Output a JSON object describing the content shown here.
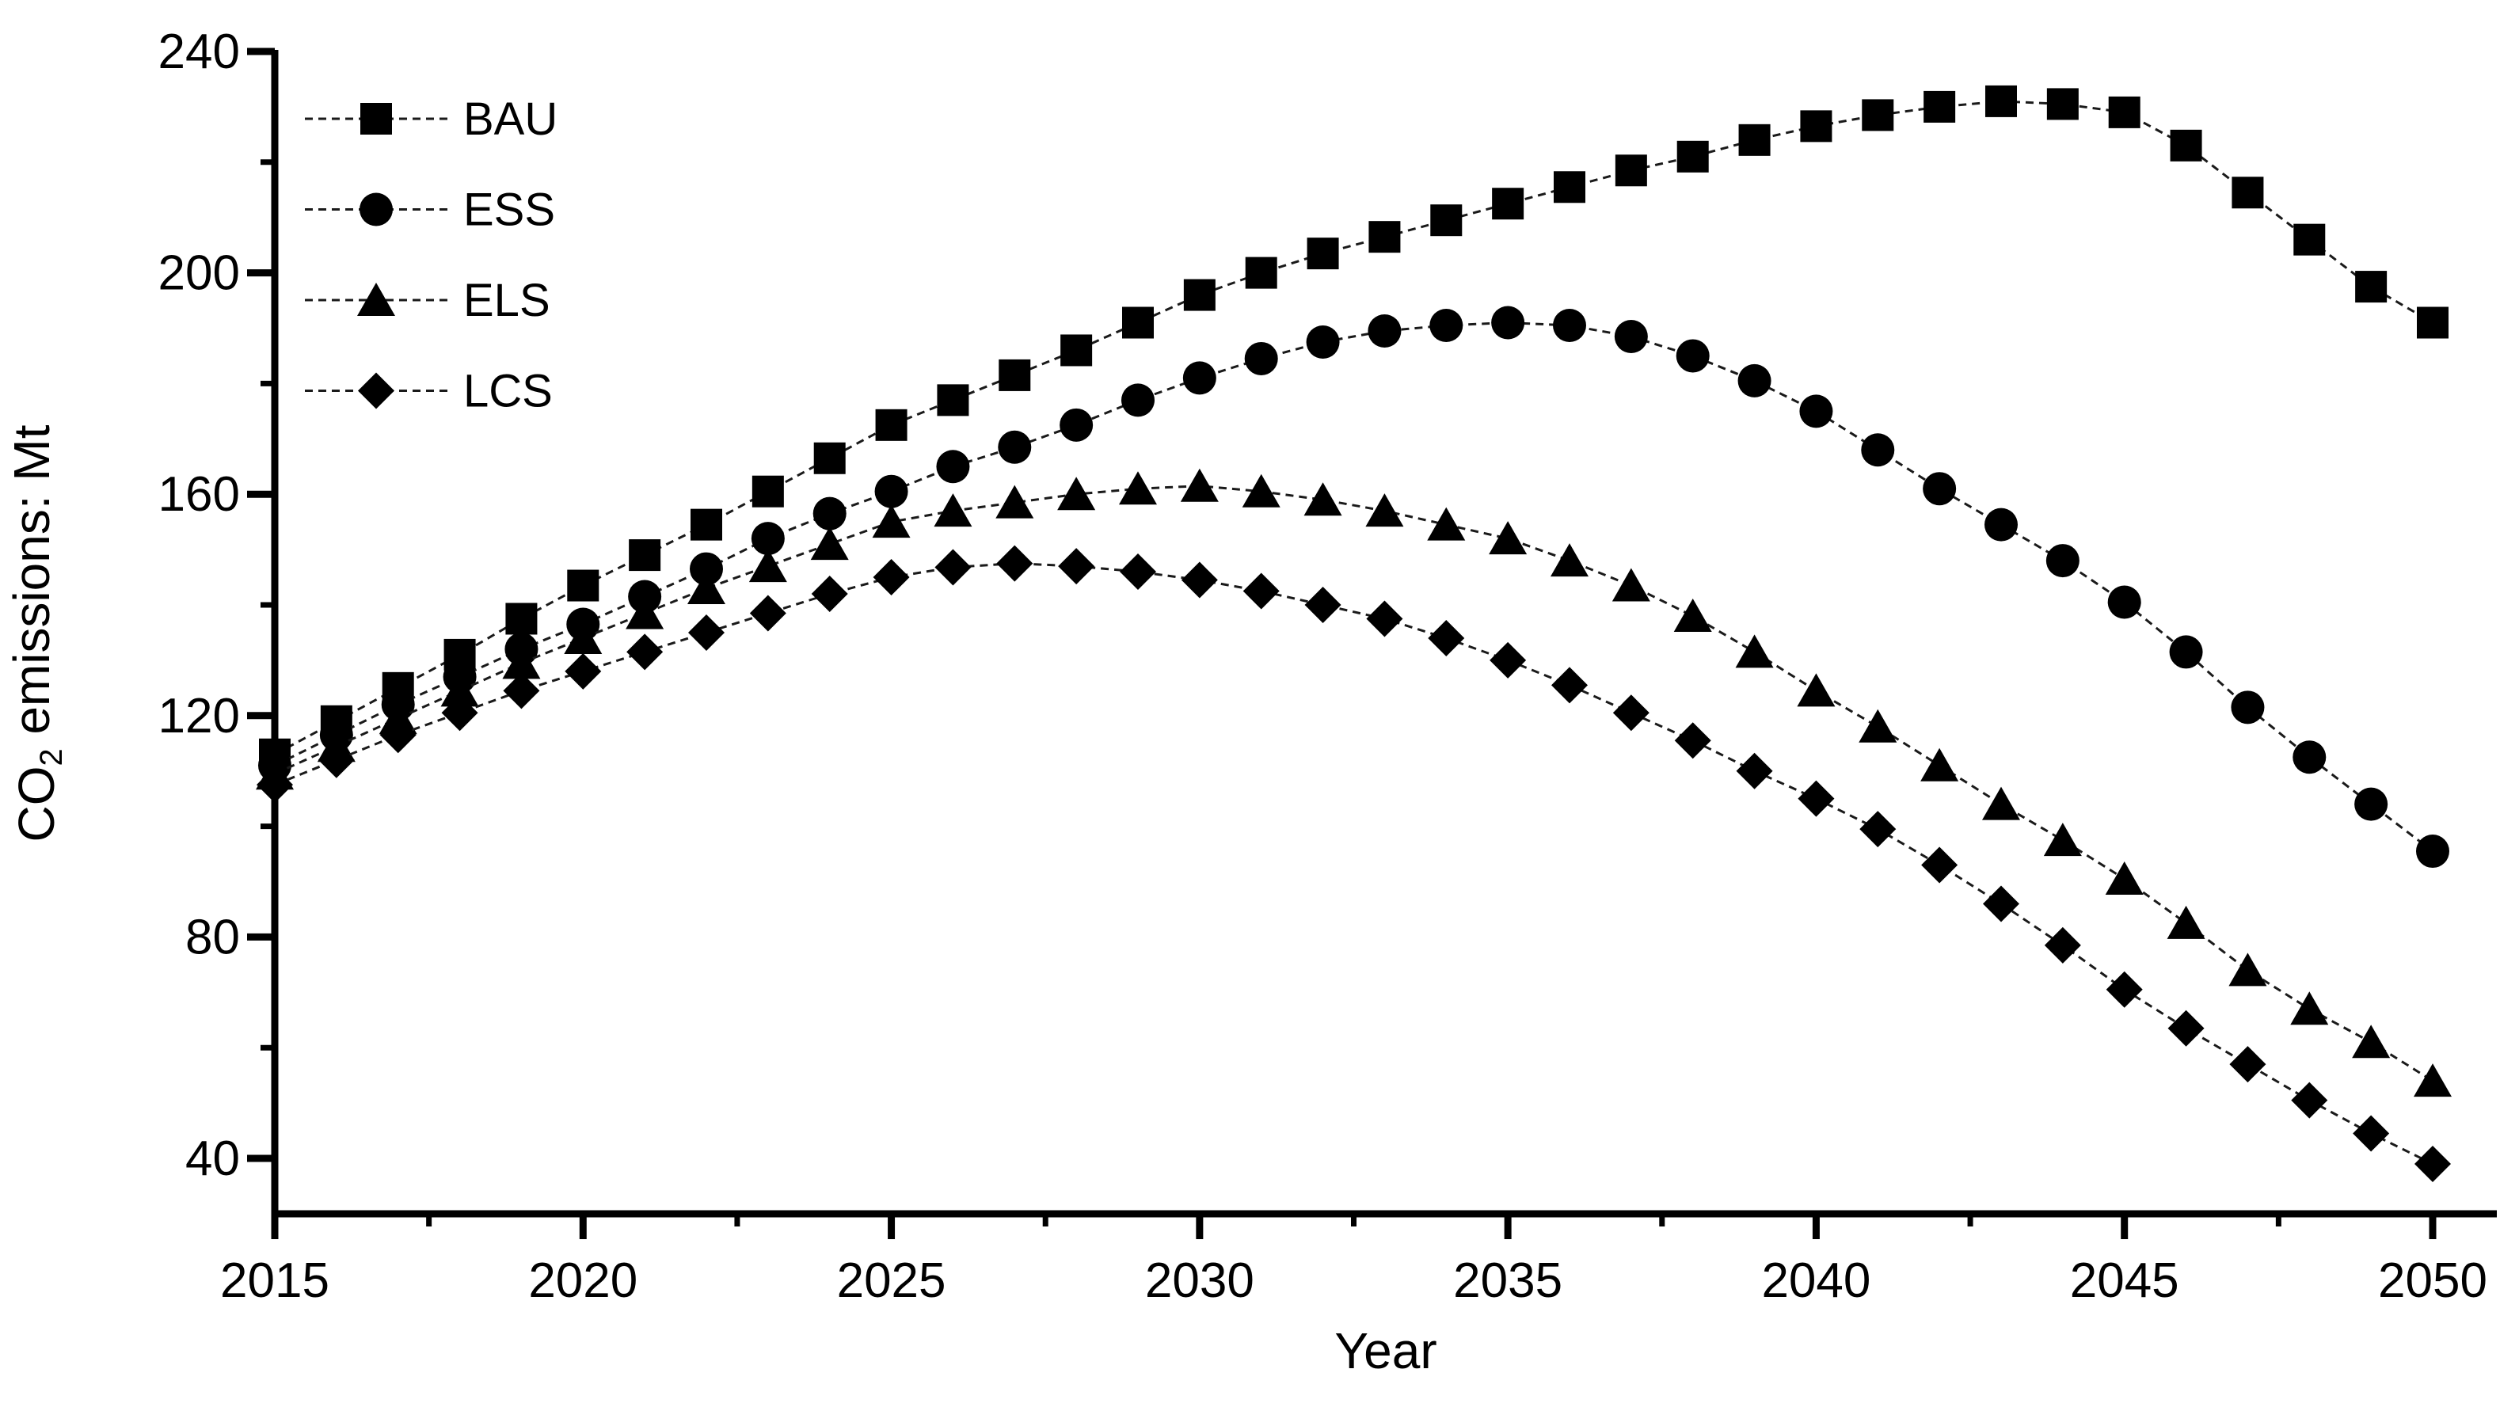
{
  "page": {
    "background": "#ffffff"
  },
  "chart_data": {
    "type": "line",
    "title": "",
    "xlabel": "Year",
    "ylabel": "CO2 emissions: Mt",
    "ylabel_parts": {
      "prefix": "CO",
      "subscript": "2",
      "suffix": " emissions: Mt"
    },
    "xlim": [
      2015,
      2051
    ],
    "ylim": [
      30,
      240
    ],
    "grid": false,
    "legend_position": "inside-top-left",
    "x_major_ticks": [
      2015,
      2020,
      2025,
      2030,
      2035,
      2040,
      2045,
      2050
    ],
    "x_minor_ticks": [
      2017.5,
      2022.5,
      2027.5,
      2032.5,
      2037.5,
      2042.5,
      2047.5
    ],
    "y_major_ticks": [
      240,
      200,
      160,
      120,
      80,
      40
    ],
    "y_minor_ticks": [
      220,
      180,
      140,
      100,
      60
    ],
    "x": [
      2015,
      2016,
      2017,
      2018,
      2019,
      2020,
      2021,
      2022,
      2023,
      2024,
      2025,
      2026,
      2027,
      2028,
      2029,
      2030,
      2031,
      2032,
      2033,
      2034,
      2035,
      2036,
      2037,
      2038,
      2039,
      2040,
      2041,
      2042,
      2043,
      2044,
      2045,
      2046,
      2047,
      2048,
      2049,
      2050
    ],
    "series": [
      {
        "name": "BAU",
        "marker": "square",
        "values": [
          113,
          119,
          125,
          131,
          137.5,
          143.5,
          149,
          154.5,
          160.5,
          166.5,
          172.5,
          177,
          181.5,
          186,
          191,
          196,
          200,
          203.5,
          206.5,
          209.5,
          212.5,
          215.5,
          218.5,
          221,
          224,
          226.5,
          228.5,
          230,
          231,
          230.5,
          229,
          223,
          214.5,
          206,
          197.5,
          191
        ]
      },
      {
        "name": "ESS",
        "marker": "circle",
        "values": [
          111,
          116.5,
          122,
          127,
          132,
          136.5,
          141.5,
          146.5,
          152,
          156.5,
          160.5,
          165,
          168.5,
          172.5,
          177,
          181,
          184.5,
          187.5,
          189.5,
          190.5,
          191,
          190.5,
          188.5,
          185,
          180.5,
          175,
          168,
          161,
          154.5,
          148,
          140.5,
          131.5,
          121.5,
          112.5,
          104,
          95.5
        ]
      },
      {
        "name": "ELS",
        "marker": "triangle",
        "values": [
          109.5,
          114.5,
          119.5,
          124.5,
          129.5,
          134,
          138.5,
          143,
          147,
          151,
          155,
          157,
          158.5,
          160,
          161,
          161.5,
          160.5,
          159,
          157,
          154.5,
          152,
          148,
          143.5,
          138,
          131.5,
          124.5,
          118,
          111,
          104,
          97.5,
          90.5,
          82.5,
          74,
          67,
          61,
          54
        ]
      },
      {
        "name": "LCS",
        "marker": "diamond",
        "values": [
          107.5,
          112,
          116.5,
          120.5,
          124.5,
          128,
          131.5,
          135,
          138.5,
          142,
          145,
          146.8,
          147.5,
          147,
          146,
          144.5,
          142.5,
          140,
          137.5,
          134,
          130,
          125.5,
          120.5,
          115.5,
          110,
          105,
          99.5,
          93,
          86,
          78.5,
          70.5,
          63.5,
          57,
          50.5,
          44.5,
          39
        ]
      }
    ],
    "colors": {
      "line": "#1a1a1a",
      "marker": "#000000",
      "text": "#000000",
      "axis": "#000000"
    }
  }
}
